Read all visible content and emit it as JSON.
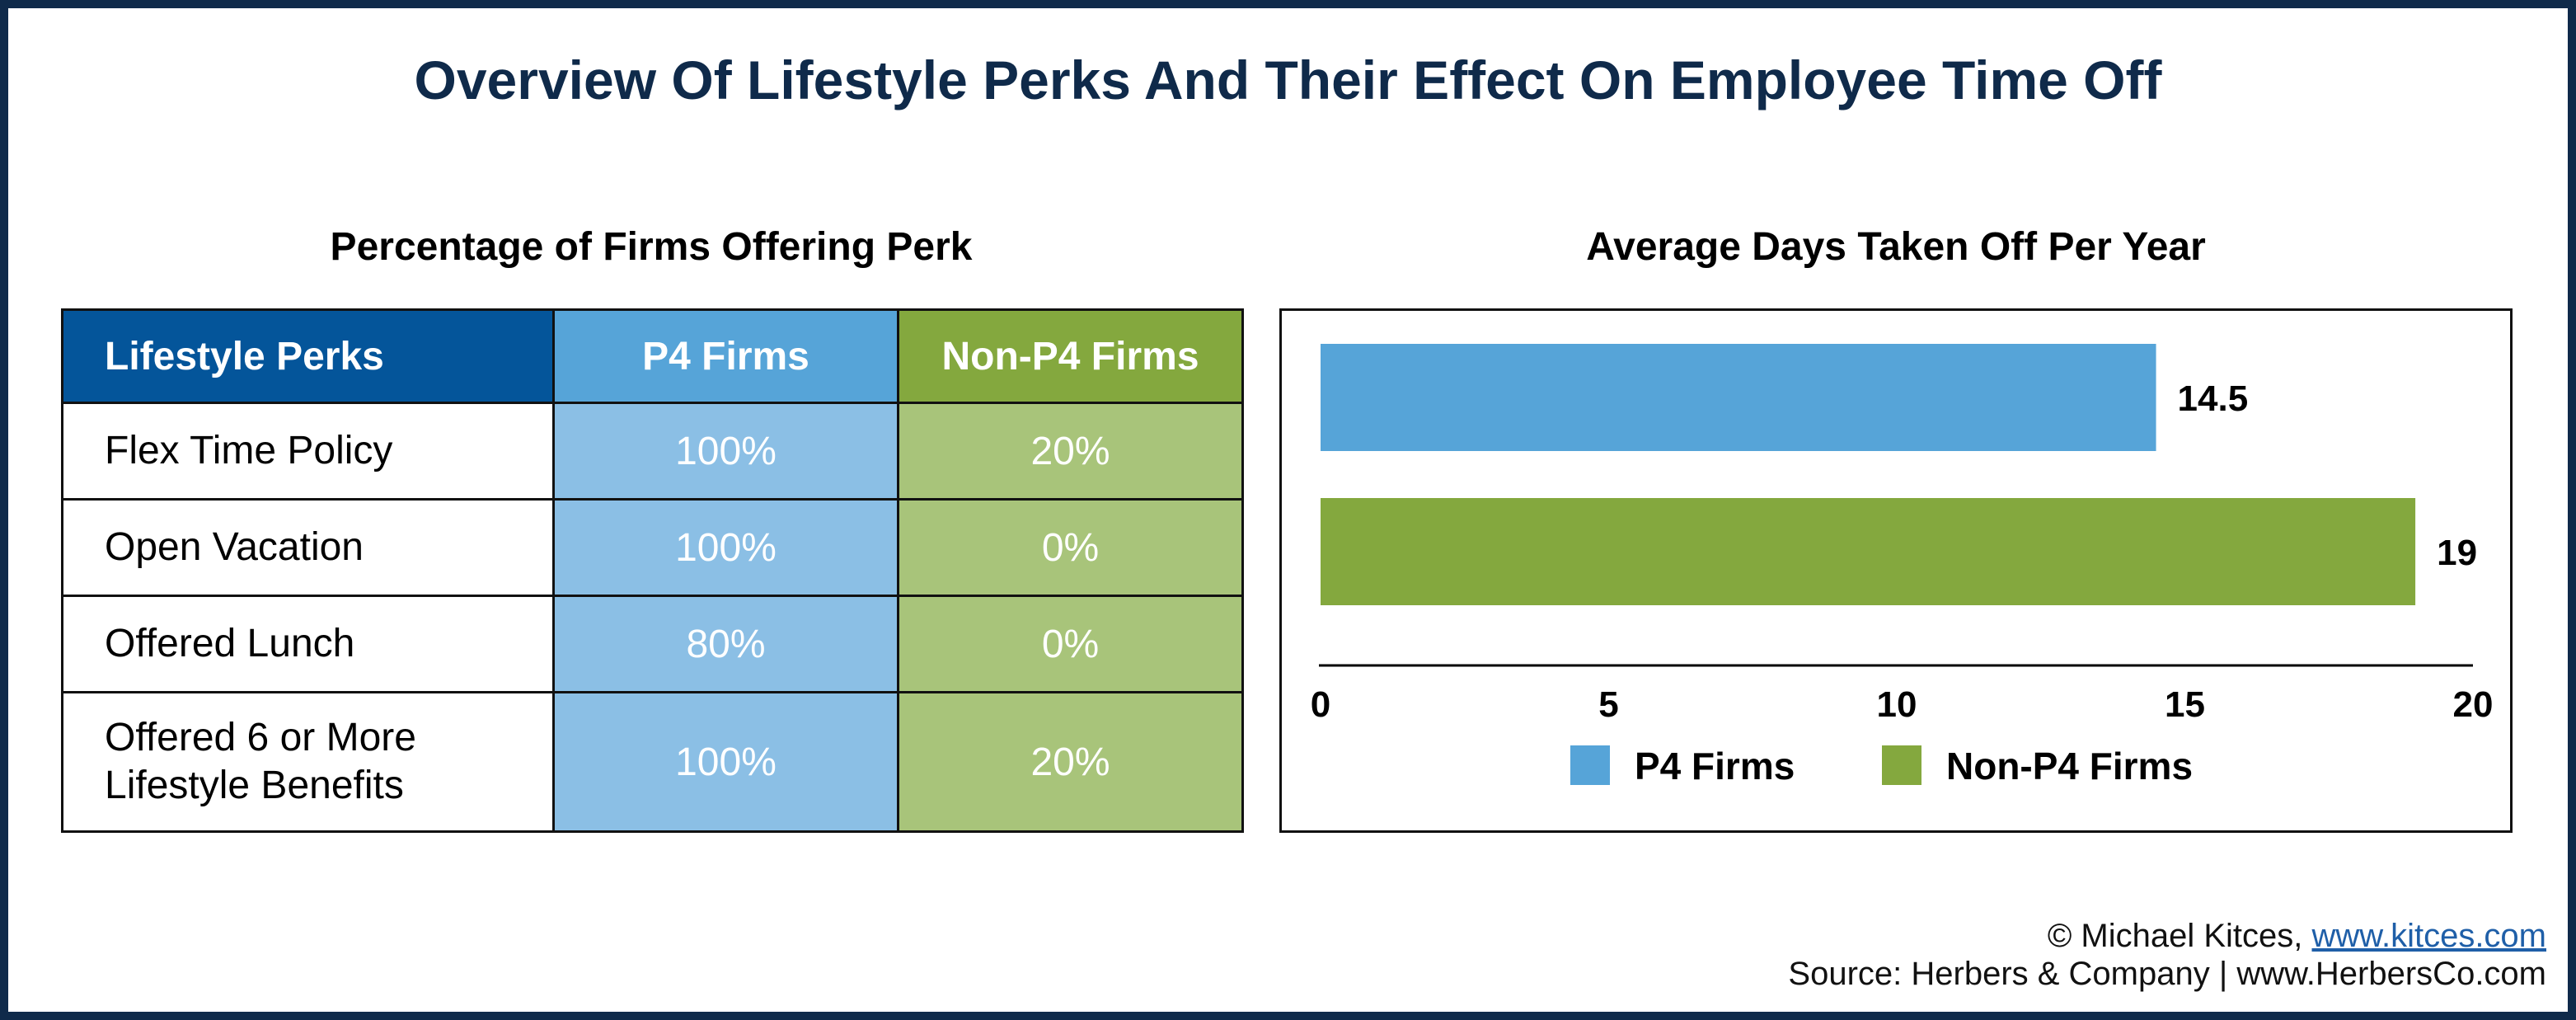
{
  "title": "Overview Of Lifestyle Perks And Their Effect On Employee Time Off",
  "table": {
    "title": "Percentage of Firms Offering Perk",
    "headers": [
      "Lifestyle Perks",
      "P4 Firms",
      "Non-P4 Firms"
    ],
    "rows": [
      {
        "perk": "Flex Time Policy",
        "p4": "100%",
        "non_p4": "20%"
      },
      {
        "perk": "Open Vacation",
        "p4": "100%",
        "non_p4": "0%"
      },
      {
        "perk": "Offered Lunch",
        "p4": "80%",
        "non_p4": "0%"
      },
      {
        "perk_line1": "Offered 6 or More",
        "perk_line2": "Lifestyle Benefits",
        "p4": "100%",
        "non_p4": "20%"
      }
    ]
  },
  "chart_data": {
    "type": "bar",
    "orientation": "horizontal",
    "title": "Average Days Taken Off Per Year",
    "series": [
      {
        "name": "P4 Firms",
        "value": 14.5,
        "label": "14.5",
        "color": "#56a4d8"
      },
      {
        "name": "Non-P4 Firms",
        "value": 19,
        "label": "19",
        "color": "#84a83e"
      }
    ],
    "xlim": [
      0,
      20
    ],
    "xticks": [
      "0",
      "5",
      "10",
      "15",
      "20"
    ],
    "grid": false,
    "legend_position": "bottom"
  },
  "credits": {
    "line1_prefix": "© Michael Kitces, ",
    "line1_link": "www.kitces.com",
    "line2": "Source: Herbers & Company | www.HerbersCo.com"
  },
  "colors": {
    "frame": "#0f2a4a",
    "header_blue": "#04559a",
    "p4_header": "#56a4d8",
    "p4_cell": "#8bbfe5",
    "non_p4_header": "#84a83e",
    "non_p4_cell": "#a8c47a"
  }
}
